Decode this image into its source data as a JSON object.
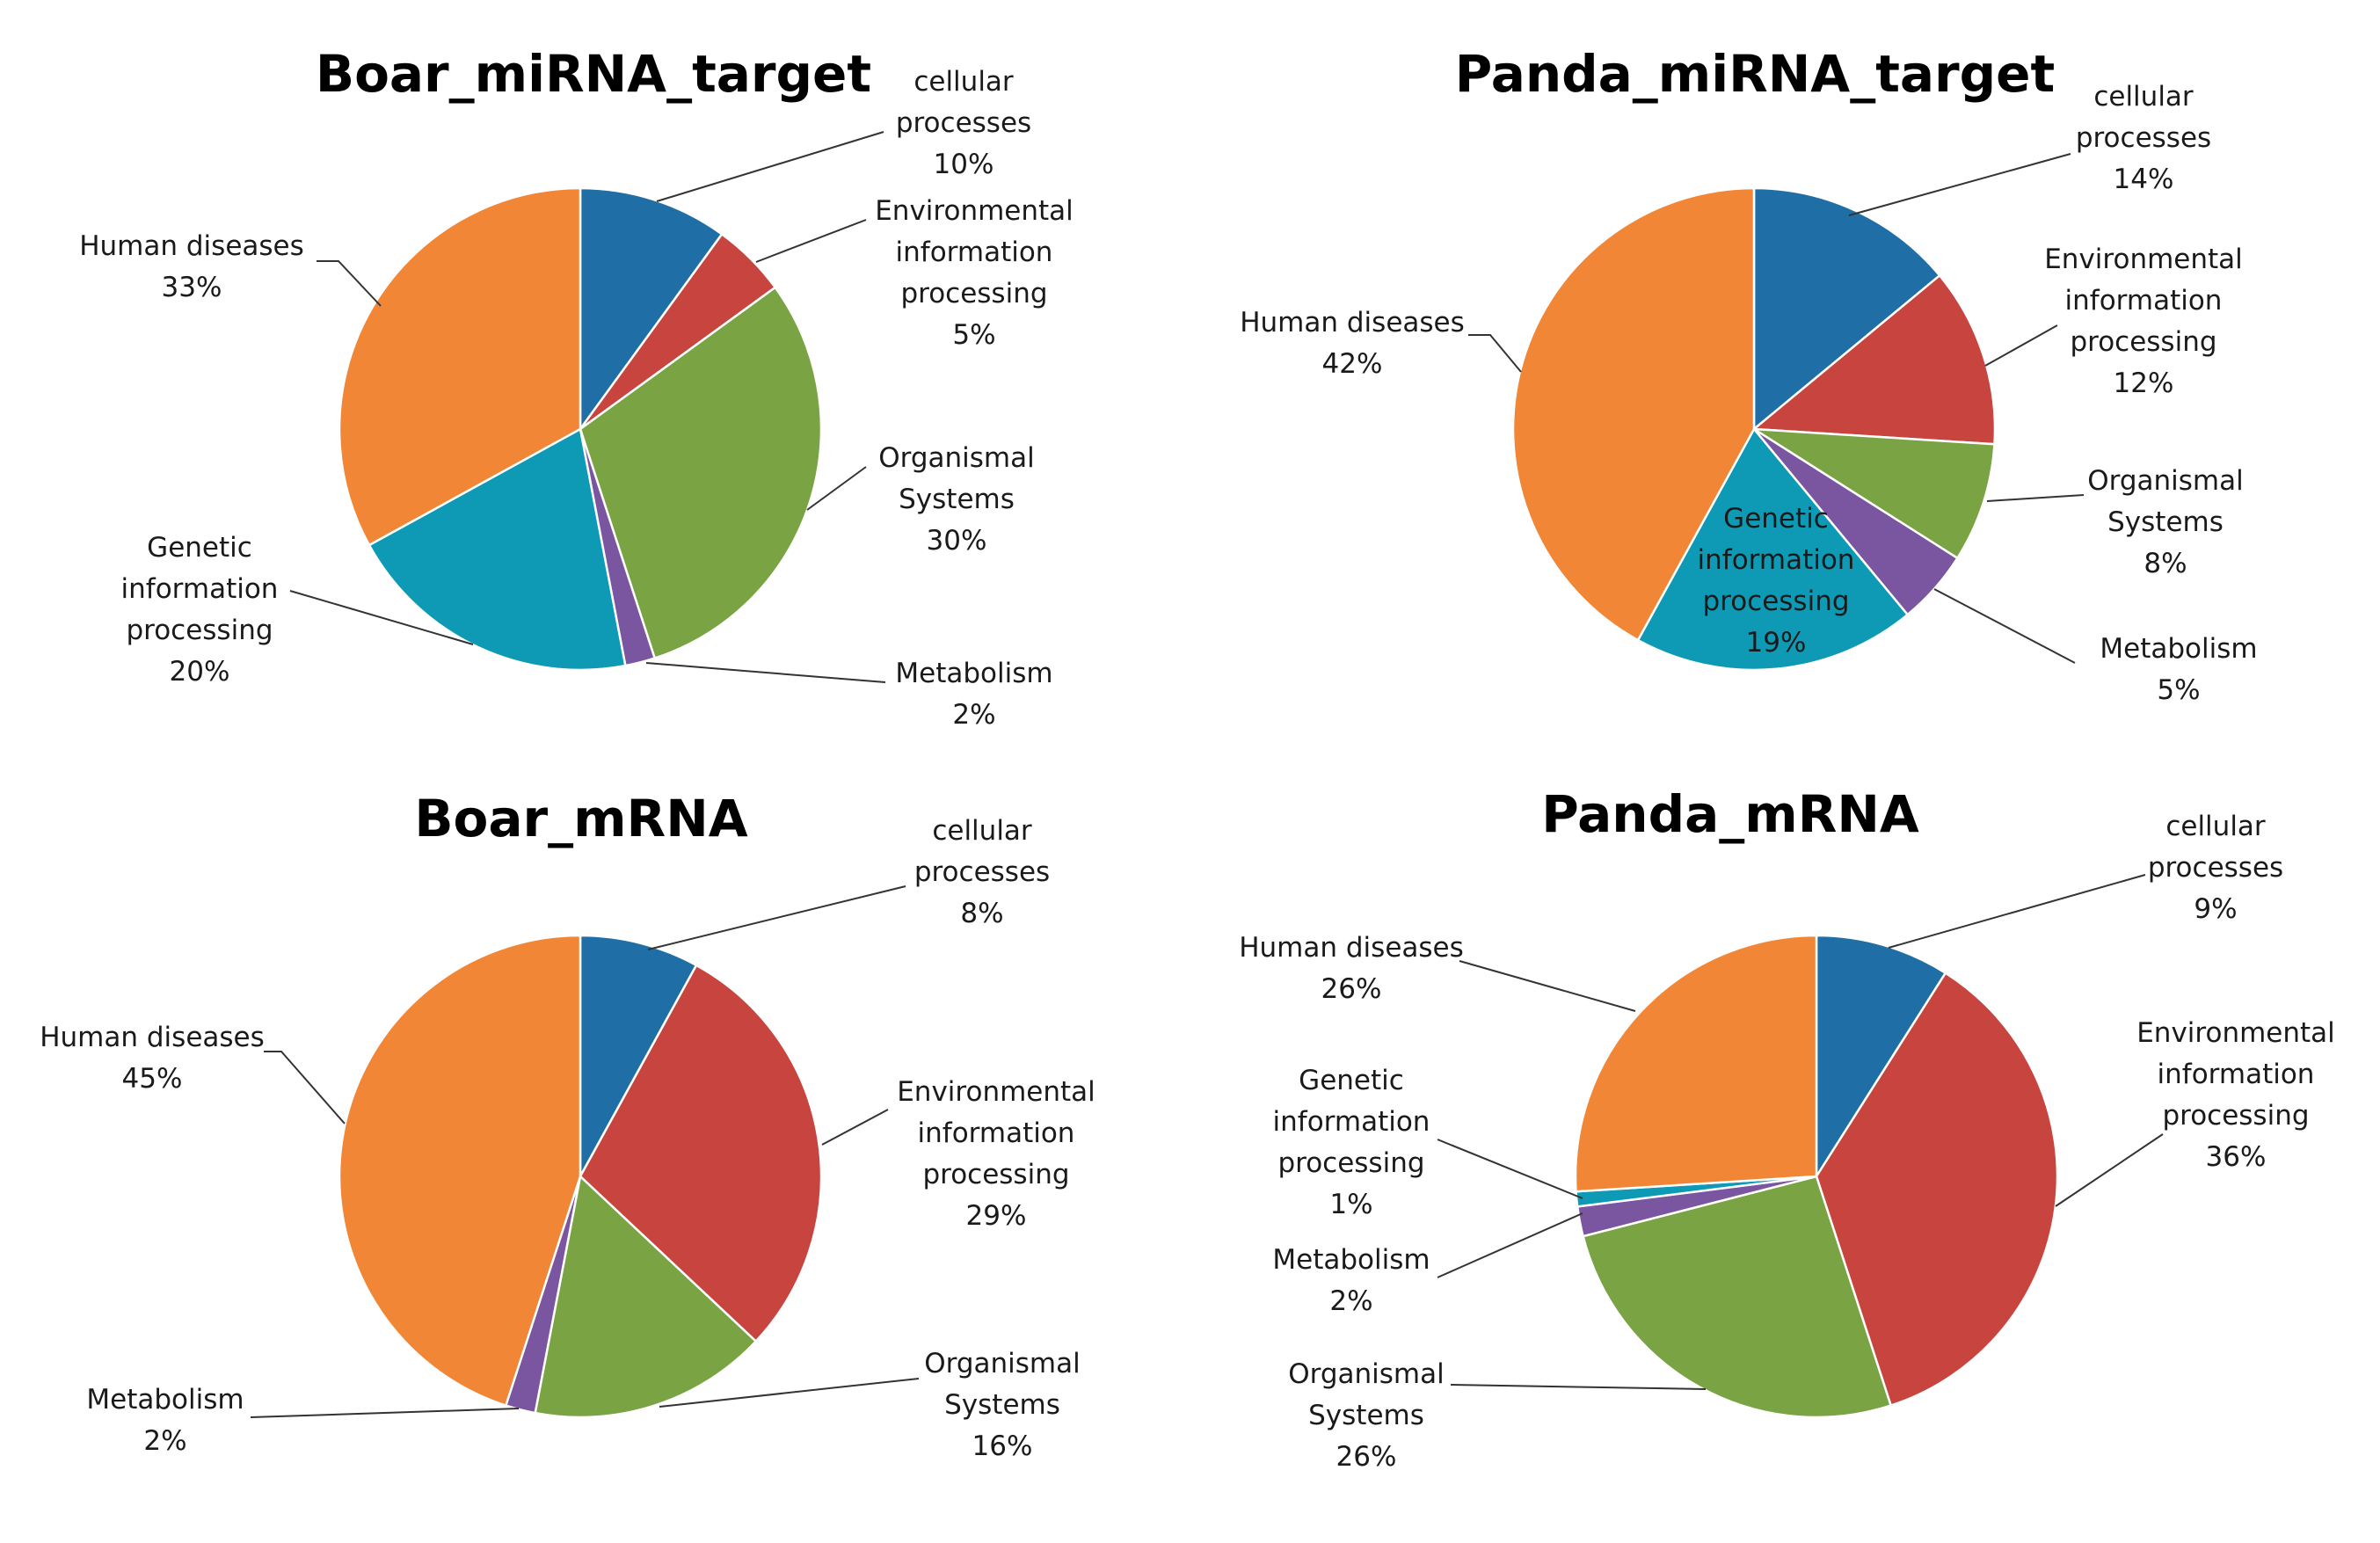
{
  "chart_data": [
    {
      "type": "pie",
      "title": "Boar_miRNA_target",
      "slices": [
        {
          "label": "cellular processes",
          "value": 10,
          "display": "10%",
          "color": "#1f6fa6"
        },
        {
          "label": "Environmental information processing",
          "value": 5,
          "display": "5%",
          "color": "#c8453f"
        },
        {
          "label": "Organismal Systems",
          "value": 30,
          "display": "30%",
          "color": "#7aa344"
        },
        {
          "label": "Metabolism",
          "value": 2,
          "display": "2%",
          "color": "#7a55a0"
        },
        {
          "label": "Genetic information processing",
          "value": 20,
          "display": "20%",
          "color": "#0e9ab5"
        },
        {
          "label": "Human diseases",
          "value": 33,
          "display": "33%",
          "color": "#f08636"
        }
      ]
    },
    {
      "type": "pie",
      "title": "Panda_miRNA_target",
      "slices": [
        {
          "label": "cellular processes",
          "value": 14,
          "display": "14%",
          "color": "#1f6fa6"
        },
        {
          "label": "Environmental information processing",
          "value": 12,
          "display": "12%",
          "color": "#c8453f"
        },
        {
          "label": "Organismal Systems",
          "value": 8,
          "display": "8%",
          "color": "#7aa344"
        },
        {
          "label": "Metabolism",
          "value": 5,
          "display": "5%",
          "color": "#7a55a0"
        },
        {
          "label": "Genetic information processing",
          "value": 19,
          "display": "19%",
          "color": "#0e9ab5"
        },
        {
          "label": "Human diseases",
          "value": 42,
          "display": "42%",
          "color": "#f08636"
        }
      ]
    },
    {
      "type": "pie",
      "title": "Boar_mRNA",
      "slices": [
        {
          "label": "cellular processes",
          "value": 8,
          "display": "8%",
          "color": "#1f6fa6"
        },
        {
          "label": "Environmental information processing",
          "value": 29,
          "display": "29%",
          "color": "#c8453f"
        },
        {
          "label": "Organismal Systems",
          "value": 16,
          "display": "16%",
          "color": "#7aa344"
        },
        {
          "label": "Metabolism",
          "value": 2,
          "display": "2%",
          "color": "#7a55a0"
        },
        {
          "label": "Human diseases",
          "value": 45,
          "display": "45%",
          "color": "#f08636"
        }
      ]
    },
    {
      "type": "pie",
      "title": "Panda_mRNA",
      "slices": [
        {
          "label": "cellular processes",
          "value": 9,
          "display": "9%",
          "color": "#1f6fa6"
        },
        {
          "label": "Environmental information processing",
          "value": 36,
          "display": "36%",
          "color": "#c8453f"
        },
        {
          "label": "Organismal Systems",
          "value": 26,
          "display": "26%",
          "color": "#7aa344"
        },
        {
          "label": "Metabolism",
          "value": 2,
          "display": "2%",
          "color": "#7a55a0"
        },
        {
          "label": "Genetic information processing",
          "value": 1,
          "display": "1%",
          "color": "#0e9ab5"
        },
        {
          "label": "Human diseases",
          "value": 26,
          "display": "26%",
          "color": "#f08636"
        }
      ]
    }
  ]
}
